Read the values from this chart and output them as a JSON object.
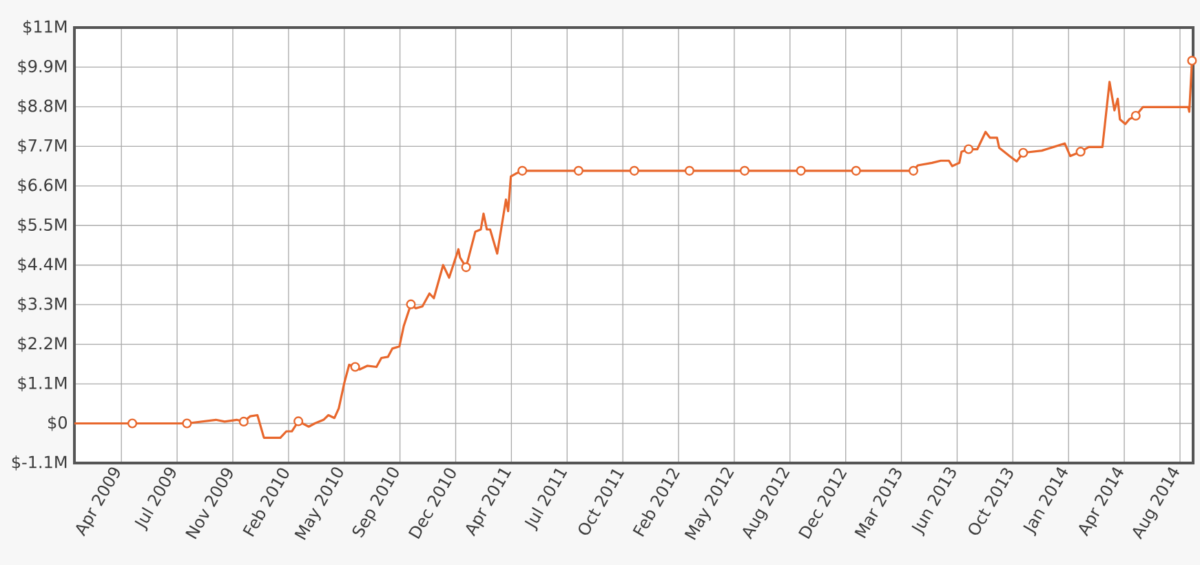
{
  "chart_data": {
    "type": "line",
    "xlim": [
      "2009-01-21",
      "2014-08-31"
    ],
    "xticks": [
      {
        "value": "2009-04-17",
        "label": "Apr 2009"
      },
      {
        "value": "2009-07-28",
        "label": "Jul 2009"
      },
      {
        "value": "2009-11-07",
        "label": "Nov 2009"
      },
      {
        "value": "2010-02-17",
        "label": "Feb 2010"
      },
      {
        "value": "2010-05-30",
        "label": "May 2010"
      },
      {
        "value": "2010-09-09",
        "label": "Sep 2010"
      },
      {
        "value": "2010-12-20",
        "label": "Dec 2010"
      },
      {
        "value": "2011-04-01",
        "label": "Apr 2011"
      },
      {
        "value": "2011-07-12",
        "label": "Jul 2011"
      },
      {
        "value": "2011-10-22",
        "label": "Oct 2011"
      },
      {
        "value": "2012-02-01",
        "label": "Feb 2012"
      },
      {
        "value": "2012-05-13",
        "label": "May 2012"
      },
      {
        "value": "2012-08-23",
        "label": "Aug 2012"
      },
      {
        "value": "2012-12-03",
        "label": "Dec 2012"
      },
      {
        "value": "2013-03-15",
        "label": "Mar 2013"
      },
      {
        "value": "2013-06-25",
        "label": "Jun 2013"
      },
      {
        "value": "2013-10-05",
        "label": "Oct 2013"
      },
      {
        "value": "2014-01-15",
        "label": "Jan 2014"
      },
      {
        "value": "2014-04-27",
        "label": "Apr 2014"
      },
      {
        "value": "2014-08-07",
        "label": "Aug 2014"
      }
    ],
    "ylim": [
      -1.1,
      11
    ],
    "yticks": [
      {
        "value": -1.1,
        "label": "$-1.1M"
      },
      {
        "value": 0,
        "label": "$0"
      },
      {
        "value": 1.1,
        "label": "$1.1M"
      },
      {
        "value": 2.2,
        "label": "$2.2M"
      },
      {
        "value": 3.3,
        "label": "$3.3M"
      },
      {
        "value": 4.4,
        "label": "$4.4M"
      },
      {
        "value": 5.5,
        "label": "$5.5M"
      },
      {
        "value": 6.6,
        "label": "$6.6M"
      },
      {
        "value": 7.7,
        "label": "$7.7M"
      },
      {
        "value": 8.8,
        "label": "$8.8M"
      },
      {
        "value": 9.9,
        "label": "$9.9M"
      },
      {
        "value": 11,
        "label": "$11M"
      }
    ],
    "grid": true,
    "series": [
      {
        "color": "#e8672c",
        "line_style": "solid",
        "x": [
          "2009-01-21",
          "2009-05-07",
          "2009-08-15",
          "2009-10-07",
          "2009-10-23",
          "2009-11-14",
          "2009-11-27",
          "2009-12-09",
          "2009-12-22",
          "2010-01-03",
          "2010-02-02",
          "2010-02-13",
          "2010-02-23",
          "2010-03-07",
          "2010-03-26",
          "2010-04-06",
          "2010-04-22",
          "2010-05-01",
          "2010-05-12",
          "2010-05-20",
          "2010-05-30",
          "2010-06-08",
          "2010-06-19",
          "2010-06-27",
          "2010-07-11",
          "2010-07-28",
          "2010-08-06",
          "2010-08-18",
          "2010-08-26",
          "2010-09-08",
          "2010-09-16",
          "2010-09-29",
          "2010-10-08",
          "2010-10-20",
          "2010-11-02",
          "2010-11-10",
          "2010-11-27",
          "2010-12-08",
          "2010-12-25",
          "2010-12-28",
          "2011-01-08",
          "2011-01-25",
          "2011-02-04",
          "2011-02-09",
          "2011-02-15",
          "2011-02-21",
          "2011-03-06",
          "2011-03-22",
          "2011-03-26",
          "2011-03-31",
          "2011-04-09",
          "2011-04-21",
          "2011-08-02",
          "2011-11-12",
          "2012-02-21",
          "2012-06-01",
          "2012-09-12",
          "2012-12-22",
          "2013-04-06",
          "2013-04-14",
          "2013-05-10",
          "2013-05-26",
          "2013-06-10",
          "2013-06-16",
          "2013-06-29",
          "2013-07-03",
          "2013-07-16",
          "2013-08-01",
          "2013-08-16",
          "2013-08-24",
          "2013-09-06",
          "2013-09-10",
          "2013-09-29",
          "2013-10-12",
          "2013-10-24",
          "2013-11-27",
          "2014-01-08",
          "2014-01-18",
          "2014-02-06",
          "2014-02-21",
          "2014-03-18",
          "2014-03-31",
          "2014-04-09",
          "2014-04-15",
          "2014-04-19",
          "2014-04-29",
          "2014-05-06",
          "2014-05-18",
          "2014-05-31",
          "2014-08-22",
          "2014-08-24",
          "2014-08-29"
        ],
        "values": [
          0,
          0,
          0,
          0.1,
          0.05,
          0.1,
          0.05,
          0.2,
          0.23,
          -0.4,
          -0.4,
          -0.22,
          -0.22,
          0.06,
          -0.09,
          0,
          0.1,
          0.23,
          0.15,
          0.42,
          1.12,
          1.63,
          1.57,
          1.5,
          1.6,
          1.57,
          1.82,
          1.85,
          2.08,
          2.14,
          2.71,
          3.31,
          3.2,
          3.25,
          3.61,
          3.48,
          4.4,
          4.05,
          4.84,
          4.61,
          4.34,
          5.33,
          5.39,
          5.83,
          5.39,
          5.39,
          4.72,
          6.22,
          5.9,
          6.86,
          6.94,
          7.02,
          7.02,
          7.02,
          7.02,
          7.02,
          7.02,
          7.02,
          7.02,
          7.17,
          7.24,
          7.3,
          7.3,
          7.15,
          7.24,
          7.55,
          7.62,
          7.62,
          8.1,
          7.94,
          7.94,
          7.66,
          7.43,
          7.28,
          7.52,
          7.58,
          7.78,
          7.43,
          7.55,
          7.68,
          7.68,
          9.49,
          8.7,
          9.02,
          8.45,
          8.32,
          8.45,
          8.55,
          8.79,
          8.79,
          8.66,
          10.08
        ]
      },
      {
        "type": "scatter",
        "color": "#e8672c",
        "marker": "circle",
        "x": [
          "2009-05-07",
          "2009-08-15",
          "2009-11-27",
          "2010-03-07",
          "2010-06-19",
          "2010-09-29",
          "2011-01-08",
          "2011-04-21",
          "2011-08-02",
          "2011-11-12",
          "2012-02-21",
          "2012-06-01",
          "2012-09-12",
          "2012-12-22",
          "2013-04-06",
          "2013-07-16",
          "2013-10-24",
          "2014-02-06",
          "2014-05-18",
          "2014-08-29"
        ],
        "values": [
          0,
          0,
          0.05,
          0.06,
          1.57,
          3.31,
          4.34,
          7.02,
          7.02,
          7.02,
          7.02,
          7.02,
          7.02,
          7.02,
          7.02,
          7.62,
          7.52,
          7.55,
          8.55,
          10.08
        ]
      }
    ]
  }
}
